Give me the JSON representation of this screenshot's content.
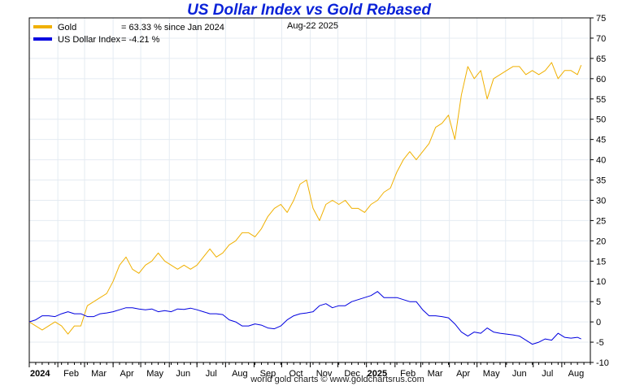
{
  "chart_data": {
    "type": "line",
    "title": "US Dollar Index vs Gold Rebased",
    "date_label": "Aug-22  2025",
    "footer": "world gold charts © www.goldchartsrus.com",
    "xlabel": "",
    "ylabel": "",
    "ylim": [
      -10,
      75
    ],
    "yticks": [
      "75",
      "70",
      "65",
      "60",
      "55",
      "50",
      "45",
      "40",
      "35",
      "30",
      "25",
      "20",
      "15",
      "10",
      "5",
      "0",
      "-5",
      "-10"
    ],
    "x_tick_labels": [
      {
        "label": "2024",
        "bold": true
      },
      {
        "label": "Feb",
        "bold": false
      },
      {
        "label": "Mar",
        "bold": false
      },
      {
        "label": "Apr",
        "bold": false
      },
      {
        "label": "May",
        "bold": false
      },
      {
        "label": "Jun",
        "bold": false
      },
      {
        "label": "Jul",
        "bold": false
      },
      {
        "label": "Aug",
        "bold": false
      },
      {
        "label": "Sep",
        "bold": false
      },
      {
        "label": "Oct",
        "bold": false
      },
      {
        "label": "Nov",
        "bold": false
      },
      {
        "label": "Dec",
        "bold": false
      },
      {
        "label": "2025",
        "bold": true
      },
      {
        "label": "Feb",
        "bold": false
      },
      {
        "label": "Mar",
        "bold": false
      },
      {
        "label": "Apr",
        "bold": false
      },
      {
        "label": "May",
        "bold": false
      },
      {
        "label": "Jun",
        "bold": false
      },
      {
        "label": "Jul",
        "bold": false
      },
      {
        "label": "Aug",
        "bold": false
      }
    ],
    "grid": true,
    "legend_position": "top-left",
    "series": [
      {
        "name": "Gold",
        "legend_text": "= 63.33 % since Jan 2024",
        "color": "#f0b000",
        "points": [
          [
            "2024-01-01",
            0
          ],
          [
            "2024-01-08",
            -1
          ],
          [
            "2024-01-15",
            -2
          ],
          [
            "2024-01-22",
            -1
          ],
          [
            "2024-01-29",
            0
          ],
          [
            "2024-02-05",
            -1
          ],
          [
            "2024-02-12",
            -3
          ],
          [
            "2024-02-19",
            -1
          ],
          [
            "2024-02-26",
            -1
          ],
          [
            "2024-03-04",
            4
          ],
          [
            "2024-03-11",
            5
          ],
          [
            "2024-03-18",
            6
          ],
          [
            "2024-03-25",
            7
          ],
          [
            "2024-04-01",
            10
          ],
          [
            "2024-04-08",
            14
          ],
          [
            "2024-04-15",
            16
          ],
          [
            "2024-04-22",
            13
          ],
          [
            "2024-04-29",
            12
          ],
          [
            "2024-05-06",
            14
          ],
          [
            "2024-05-13",
            15
          ],
          [
            "2024-05-20",
            17
          ],
          [
            "2024-05-27",
            15
          ],
          [
            "2024-06-03",
            14
          ],
          [
            "2024-06-10",
            13
          ],
          [
            "2024-06-17",
            14
          ],
          [
            "2024-06-24",
            13
          ],
          [
            "2024-07-01",
            14
          ],
          [
            "2024-07-08",
            16
          ],
          [
            "2024-07-15",
            18
          ],
          [
            "2024-07-22",
            16
          ],
          [
            "2024-07-29",
            17
          ],
          [
            "2024-08-05",
            19
          ],
          [
            "2024-08-12",
            20
          ],
          [
            "2024-08-19",
            22
          ],
          [
            "2024-08-26",
            22
          ],
          [
            "2024-09-02",
            21
          ],
          [
            "2024-09-09",
            23
          ],
          [
            "2024-09-16",
            26
          ],
          [
            "2024-09-23",
            28
          ],
          [
            "2024-09-30",
            29
          ],
          [
            "2024-10-07",
            27
          ],
          [
            "2024-10-14",
            30
          ],
          [
            "2024-10-21",
            34
          ],
          [
            "2024-10-28",
            35
          ],
          [
            "2024-11-04",
            28
          ],
          [
            "2024-11-11",
            25
          ],
          [
            "2024-11-18",
            29
          ],
          [
            "2024-11-25",
            30
          ],
          [
            "2024-12-02",
            29
          ],
          [
            "2024-12-09",
            30
          ],
          [
            "2024-12-16",
            28
          ],
          [
            "2024-12-23",
            28
          ],
          [
            "2024-12-30",
            27
          ],
          [
            "2025-01-06",
            29
          ],
          [
            "2025-01-13",
            30
          ],
          [
            "2025-01-20",
            32
          ],
          [
            "2025-01-27",
            33
          ],
          [
            "2025-02-03",
            37
          ],
          [
            "2025-02-10",
            40
          ],
          [
            "2025-02-17",
            42
          ],
          [
            "2025-02-24",
            40
          ],
          [
            "2025-03-03",
            42
          ],
          [
            "2025-03-10",
            44
          ],
          [
            "2025-03-17",
            48
          ],
          [
            "2025-03-24",
            49
          ],
          [
            "2025-03-31",
            51
          ],
          [
            "2025-04-07",
            45
          ],
          [
            "2025-04-14",
            56
          ],
          [
            "2025-04-21",
            63
          ],
          [
            "2025-04-28",
            60
          ],
          [
            "2025-05-05",
            62
          ],
          [
            "2025-05-12",
            55
          ],
          [
            "2025-05-19",
            60
          ],
          [
            "2025-05-26",
            61
          ],
          [
            "2025-06-02",
            62
          ],
          [
            "2025-06-09",
            63
          ],
          [
            "2025-06-16",
            63
          ],
          [
            "2025-06-23",
            61
          ],
          [
            "2025-06-30",
            62
          ],
          [
            "2025-07-07",
            61
          ],
          [
            "2025-07-14",
            62
          ],
          [
            "2025-07-21",
            64
          ],
          [
            "2025-07-28",
            60
          ],
          [
            "2025-08-04",
            62
          ],
          [
            "2025-08-11",
            62
          ],
          [
            "2025-08-18",
            61
          ],
          [
            "2025-08-22",
            63.33
          ]
        ]
      },
      {
        "name": "US Dollar Index",
        "legend_text": "= -4.21 %",
        "color": "#0000e0",
        "points": [
          [
            "2024-01-01",
            0
          ],
          [
            "2024-01-08",
            0.5
          ],
          [
            "2024-01-15",
            1.5
          ],
          [
            "2024-01-22",
            1.5
          ],
          [
            "2024-01-29",
            1.3
          ],
          [
            "2024-02-05",
            2
          ],
          [
            "2024-02-12",
            2.5
          ],
          [
            "2024-02-19",
            2
          ],
          [
            "2024-02-26",
            2
          ],
          [
            "2024-03-04",
            1.3
          ],
          [
            "2024-03-11",
            1.3
          ],
          [
            "2024-03-18",
            2
          ],
          [
            "2024-03-25",
            2.2
          ],
          [
            "2024-04-01",
            2.5
          ],
          [
            "2024-04-08",
            3
          ],
          [
            "2024-04-15",
            3.5
          ],
          [
            "2024-04-22",
            3.5
          ],
          [
            "2024-04-29",
            3.2
          ],
          [
            "2024-05-06",
            3
          ],
          [
            "2024-05-13",
            3.2
          ],
          [
            "2024-05-20",
            2.5
          ],
          [
            "2024-05-27",
            2.8
          ],
          [
            "2024-06-03",
            2.5
          ],
          [
            "2024-06-10",
            3.2
          ],
          [
            "2024-06-17",
            3.1
          ],
          [
            "2024-06-24",
            3.4
          ],
          [
            "2024-07-01",
            3
          ],
          [
            "2024-07-08",
            2.5
          ],
          [
            "2024-07-15",
            2
          ],
          [
            "2024-07-22",
            2
          ],
          [
            "2024-07-29",
            1.8
          ],
          [
            "2024-08-05",
            0.5
          ],
          [
            "2024-08-12",
            0
          ],
          [
            "2024-08-19",
            -1
          ],
          [
            "2024-08-26",
            -1
          ],
          [
            "2024-09-02",
            -0.5
          ],
          [
            "2024-09-09",
            -0.8
          ],
          [
            "2024-09-16",
            -1.5
          ],
          [
            "2024-09-23",
            -1.7
          ],
          [
            "2024-09-30",
            -1
          ],
          [
            "2024-10-07",
            0.5
          ],
          [
            "2024-10-14",
            1.5
          ],
          [
            "2024-10-21",
            2
          ],
          [
            "2024-10-28",
            2.2
          ],
          [
            "2024-11-04",
            2.5
          ],
          [
            "2024-11-11",
            4
          ],
          [
            "2024-11-18",
            4.5
          ],
          [
            "2024-11-25",
            3.5
          ],
          [
            "2024-12-02",
            4
          ],
          [
            "2024-12-09",
            4
          ],
          [
            "2024-12-16",
            5
          ],
          [
            "2024-12-23",
            5.5
          ],
          [
            "2024-12-30",
            6
          ],
          [
            "2025-01-06",
            6.5
          ],
          [
            "2025-01-13",
            7.5
          ],
          [
            "2025-01-20",
            6
          ],
          [
            "2025-01-27",
            6
          ],
          [
            "2025-02-03",
            6
          ],
          [
            "2025-02-10",
            5.5
          ],
          [
            "2025-02-17",
            5
          ],
          [
            "2025-02-24",
            5
          ],
          [
            "2025-03-03",
            3
          ],
          [
            "2025-03-10",
            1.5
          ],
          [
            "2025-03-17",
            1.5
          ],
          [
            "2025-03-24",
            1.3
          ],
          [
            "2025-03-31",
            1
          ],
          [
            "2025-04-07",
            -0.5
          ],
          [
            "2025-04-14",
            -2.5
          ],
          [
            "2025-04-21",
            -3.5
          ],
          [
            "2025-04-28",
            -2.5
          ],
          [
            "2025-05-05",
            -2.8
          ],
          [
            "2025-05-12",
            -1.5
          ],
          [
            "2025-05-19",
            -2.5
          ],
          [
            "2025-05-26",
            -2.8
          ],
          [
            "2025-06-02",
            -3
          ],
          [
            "2025-06-09",
            -3.2
          ],
          [
            "2025-06-16",
            -3.5
          ],
          [
            "2025-06-23",
            -4.5
          ],
          [
            "2025-06-30",
            -5.5
          ],
          [
            "2025-07-07",
            -5
          ],
          [
            "2025-07-14",
            -4.2
          ],
          [
            "2025-07-21",
            -4.5
          ],
          [
            "2025-07-28",
            -2.8
          ],
          [
            "2025-08-04",
            -3.8
          ],
          [
            "2025-08-11",
            -4
          ],
          [
            "2025-08-18",
            -3.8
          ],
          [
            "2025-08-22",
            -4.21
          ]
        ]
      }
    ]
  }
}
